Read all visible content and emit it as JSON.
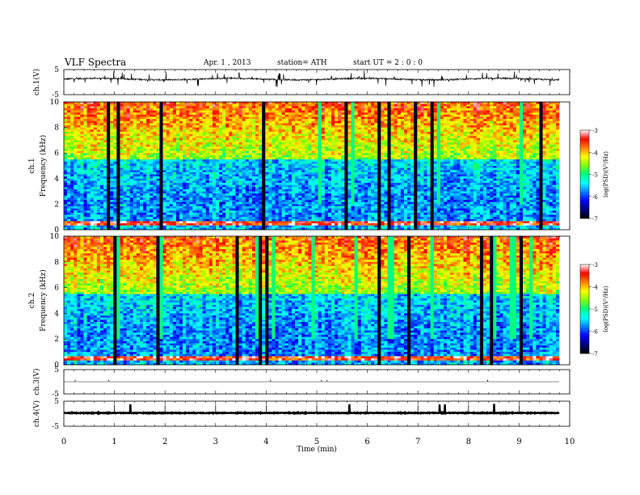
{
  "header": {
    "title": "VLF  Spectra",
    "date": "Apr. 1  , 2013",
    "station": "station= ATH",
    "start": "start  UT  =   2  : 0  : 0"
  },
  "chart_data": [
    {
      "type": "line",
      "panel": "ch1",
      "ylabel": "ch.1(V)",
      "ylim": [
        -5,
        5
      ],
      "yticks": [
        "5",
        "-5"
      ],
      "xlim": [
        0,
        10
      ],
      "series": [
        {
          "baseline": 1.2,
          "noise": 0.6
        }
      ]
    },
    {
      "type": "heatmap",
      "panel": "spec1",
      "ylabel_channel": "ch.1",
      "ylabel": "Frequency  (kHz)",
      "ylim": [
        0,
        10
      ],
      "yticks": [
        "0",
        "2",
        "4",
        "6",
        "8",
        "10"
      ],
      "xlim": [
        0,
        10
      ],
      "colorbar": {
        "label": "log(PSD)(V²/Hz)",
        "range": [
          -7,
          -3
        ],
        "ticks": [
          "-3",
          "-4",
          "-5",
          "-6",
          "-7"
        ]
      }
    },
    {
      "type": "heatmap",
      "panel": "spec2",
      "ylabel_channel": "ch.2",
      "ylabel": "Frequency  (kHz)",
      "ylim": [
        0,
        10
      ],
      "yticks": [
        "0",
        "2",
        "4",
        "6",
        "8",
        "10"
      ],
      "xlim": [
        0,
        10
      ],
      "colorbar": {
        "label": "log(PSD)(V²/Hz)",
        "range": [
          -7,
          -3
        ],
        "ticks": [
          "-3",
          "-4",
          "-5",
          "-6",
          "-7"
        ]
      }
    },
    {
      "type": "line",
      "panel": "ch3",
      "ylabel": "ch.3(V)",
      "ylim": [
        -5,
        5
      ],
      "yticks": [
        "5",
        "-5"
      ],
      "xlim": [
        0,
        10
      ],
      "series": [
        {
          "baseline": 0.0,
          "noise": 0.05
        }
      ]
    },
    {
      "type": "line",
      "panel": "ch4",
      "ylabel": "ch.4(V)",
      "ylim": [
        -5,
        5
      ],
      "yticks": [
        "5",
        "-5"
      ],
      "xlim": [
        0,
        10
      ],
      "xlabel": "Time  (min)",
      "xticks": [
        "0",
        "1",
        "2",
        "3",
        "4",
        "5",
        "6",
        "7",
        "8",
        "9",
        "10"
      ],
      "series": [
        {
          "baseline": 0.3,
          "noise": 0.3
        }
      ]
    }
  ],
  "colors": {
    "colormap": [
      "#000000",
      "#000080",
      "#0000ff",
      "#0080ff",
      "#00ffff",
      "#00ff80",
      "#80ff00",
      "#ffff00",
      "#ff8000",
      "#ff0000",
      "#ffffff"
    ],
    "trace": "#000000"
  }
}
